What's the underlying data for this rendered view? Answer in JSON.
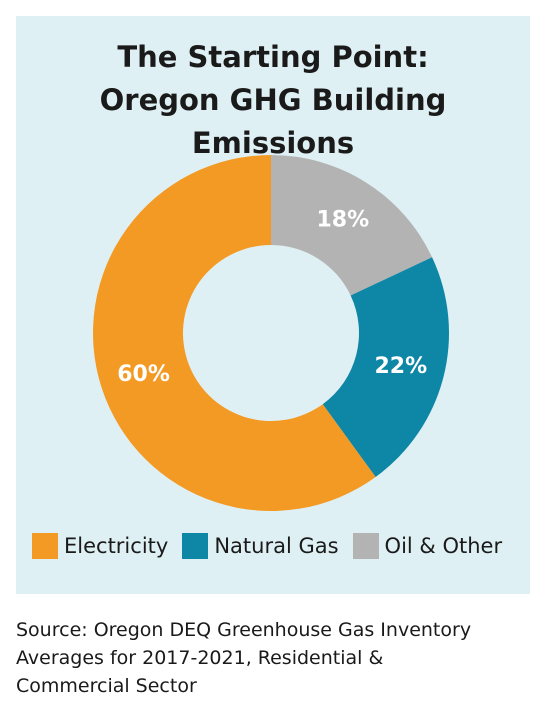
{
  "chart_data": {
    "type": "pie",
    "title": [
      "The Starting Point:",
      "Oregon GHG Building Emissions"
    ],
    "categories": [
      "Oil & Other",
      "Natural Gas",
      "Electricity"
    ],
    "values": [
      18,
      22,
      60
    ],
    "value_labels": [
      "18%",
      "22%",
      "60%"
    ],
    "colors": [
      "#b3b3b3",
      "#0e86a5",
      "#f39a24"
    ],
    "legend": [
      {
        "label": "Electricity",
        "color": "#f39a24"
      },
      {
        "label": "Natural Gas",
        "color": "#0e86a5"
      },
      {
        "label": "Oil & Other",
        "color": "#b3b3b3"
      }
    ],
    "legend_position": "bottom"
  },
  "source": {
    "lines": [
      "Source: Oregon DEQ Greenhouse Gas Inventory",
      "Averages for 2017-2021, Residential &",
      "Commercial Sector"
    ]
  }
}
